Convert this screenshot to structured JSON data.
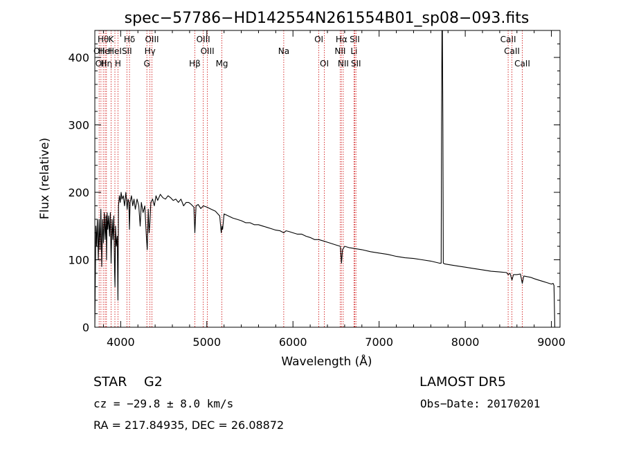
{
  "chart_data": {
    "type": "line",
    "title": "spec−57786−HD142554N261554B01_sp08−093.fits",
    "xlabel": "Wavelength (Å)",
    "ylabel": "Flux (relative)",
    "xlim": [
      3700,
      9100
    ],
    "ylim": [
      0,
      440
    ],
    "xticks": [
      4000,
      5000,
      6000,
      7000,
      8000,
      9000
    ],
    "yticks": [
      0,
      100,
      200,
      300,
      400
    ],
    "grid": false,
    "series": [
      {
        "color": "#000000",
        "x": [
          3700,
          3705,
          3712,
          3720,
          3730,
          3740,
          3750,
          3760,
          3770,
          3780,
          3790,
          3800,
          3810,
          3820,
          3830,
          3836,
          3842,
          3850,
          3860,
          3870,
          3880,
          3889,
          3900,
          3910,
          3920,
          3930,
          3934,
          3940,
          3950,
          3960,
          3968,
          3975,
          3985,
          3995,
          4005,
          4015,
          4030,
          4045,
          4060,
          4075,
          4085,
          4095,
          4102,
          4110,
          4125,
          4140,
          4155,
          4170,
          4190,
          4210,
          4226,
          4240,
          4260,
          4280,
          4300,
          4308,
          4320,
          4330,
          4340,
          4350,
          4370,
          4390,
          4410,
          4430,
          4460,
          4490,
          4520,
          4550,
          4580,
          4610,
          4640,
          4670,
          4700,
          4730,
          4760,
          4790,
          4820,
          4850,
          4861,
          4875,
          4900,
          4930,
          4960,
          5000,
          5050,
          5100,
          5150,
          5167,
          5175,
          5183,
          5200,
          5250,
          5300,
          5350,
          5400,
          5450,
          5500,
          5550,
          5600,
          5650,
          5700,
          5750,
          5800,
          5850,
          5893,
          5920,
          5950,
          6000,
          6050,
          6100,
          6150,
          6200,
          6250,
          6300,
          6350,
          6400,
          6450,
          6500,
          6550,
          6563,
          6575,
          6600,
          6650,
          6700,
          6750,
          6800,
          6900,
          7000,
          7100,
          7200,
          7300,
          7400,
          7500,
          7600,
          7700,
          7720,
          7725,
          7730,
          7735,
          7740,
          7745,
          7760,
          7800,
          7900,
          8000,
          8100,
          8200,
          8300,
          8400,
          8480,
          8498,
          8520,
          8542,
          8560,
          8600,
          8640,
          8662,
          8680,
          8720,
          8760,
          8800,
          8850,
          8900,
          8950,
          9000,
          9020,
          9030,
          9040,
          9050
        ],
        "values": [
          0,
          65,
          150,
          120,
          160,
          100,
          160,
          115,
          175,
          90,
          160,
          125,
          170,
          130,
          165,
          100,
          170,
          145,
          165,
          135,
          170,
          95,
          160,
          130,
          165,
          80,
          60,
          150,
          120,
          135,
          40,
          180,
          195,
          185,
          200,
          190,
          195,
          180,
          200,
          175,
          190,
          185,
          145,
          185,
          195,
          180,
          190,
          175,
          190,
          180,
          150,
          185,
          170,
          180,
          130,
          115,
          175,
          140,
          155,
          185,
          190,
          180,
          195,
          188,
          197,
          192,
          190,
          195,
          192,
          188,
          190,
          185,
          190,
          180,
          185,
          185,
          182,
          178,
          140,
          180,
          182,
          176,
          180,
          178,
          175,
          172,
          165,
          140,
          150,
          145,
          168,
          165,
          162,
          160,
          158,
          155,
          155,
          152,
          152,
          150,
          148,
          146,
          144,
          143,
          140,
          143,
          142,
          140,
          138,
          138,
          135,
          133,
          130,
          130,
          128,
          126,
          124,
          122,
          120,
          95,
          115,
          120,
          118,
          117,
          116,
          115,
          112,
          110,
          108,
          105,
          103,
          102,
          100,
          98,
          95,
          95,
          300,
          440,
          440,
          300,
          95,
          94,
          93,
          91,
          89,
          87,
          85,
          83,
          82,
          81,
          78,
          80,
          70,
          78,
          78,
          79,
          65,
          76,
          75,
          74,
          72,
          70,
          68,
          66,
          64,
          65,
          62,
          0,
          0
        ]
      }
    ],
    "lines": [
      {
        "wl": 3750,
        "label": "OII",
        "row": 1
      },
      {
        "wl": 3771,
        "label": "OII",
        "row": 2
      },
      {
        "wl": 3798,
        "label": "Hθ",
        "row": 0
      },
      {
        "wl": 3820,
        "label": "HeI",
        "row": 1
      },
      {
        "wl": 3835,
        "label": "Hη",
        "row": 2
      },
      {
        "wl": 3889,
        "label": "K",
        "row": 0
      },
      {
        "wl": 3933,
        "label": "HeI",
        "row": 1
      },
      {
        "wl": 3968,
        "label": "H",
        "row": 2
      },
      {
        "wl": 4072,
        "label": "SII",
        "row": 1
      },
      {
        "wl": 4102,
        "label": "Hδ",
        "row": 0
      },
      {
        "wl": 4304,
        "label": "G",
        "row": 2
      },
      {
        "wl": 4340,
        "label": "Hγ",
        "row": 1
      },
      {
        "wl": 4363,
        "label": "OIII",
        "row": 0
      },
      {
        "wl": 4861,
        "label": "Hβ",
        "row": 2
      },
      {
        "wl": 4959,
        "label": "OIII",
        "row": 0
      },
      {
        "wl": 5007,
        "label": "OIII",
        "row": 1
      },
      {
        "wl": 5175,
        "label": "Mg",
        "row": 2
      },
      {
        "wl": 5893,
        "label": "Na",
        "row": 1
      },
      {
        "wl": 6300,
        "label": "OI",
        "row": 0
      },
      {
        "wl": 6364,
        "label": "OI",
        "row": 2
      },
      {
        "wl": 6548,
        "label": "NII",
        "row": 1
      },
      {
        "wl": 6563,
        "label": "Hα",
        "row": 0
      },
      {
        "wl": 6584,
        "label": "NII",
        "row": 2
      },
      {
        "wl": 6708,
        "label": "Li",
        "row": 1
      },
      {
        "wl": 6717,
        "label": "SII",
        "row": 0
      },
      {
        "wl": 6731,
        "label": "SII",
        "row": 2
      },
      {
        "wl": 8498,
        "label": "CaII",
        "row": 0
      },
      {
        "wl": 8542,
        "label": "CaII",
        "row": 1
      },
      {
        "wl": 8662,
        "label": "CaII",
        "row": 2
      }
    ]
  },
  "footer": {
    "object_class": "STAR",
    "subclass": "G2",
    "survey": "LAMOST DR5",
    "redshift": "cz = −29.8 ± 8.0 km/s",
    "obs_date": "Obs−Date: 20170201",
    "coords": "RA = 217.84935, DEC =  26.08872"
  }
}
